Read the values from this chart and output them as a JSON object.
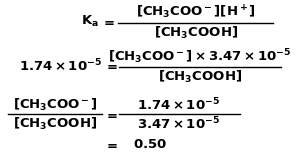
{
  "background_color": "#ffffff",
  "text_color": "#000000",
  "figsize": [
    3.07,
    1.65
  ],
  "dpi": 100,
  "fontsize": 9.5
}
